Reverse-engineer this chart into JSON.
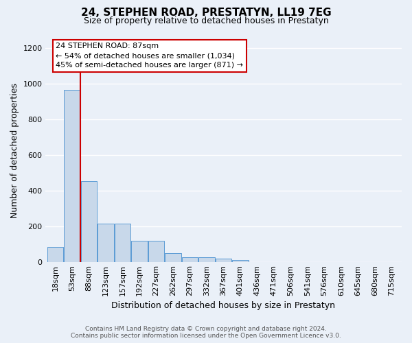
{
  "title": "24, STEPHEN ROAD, PRESTATYN, LL19 7EG",
  "subtitle": "Size of property relative to detached houses in Prestatyn",
  "xlabel": "Distribution of detached houses by size in Prestatyn",
  "ylabel": "Number of detached properties",
  "footer_line1": "Contains HM Land Registry data © Crown copyright and database right 2024.",
  "footer_line2": "Contains public sector information licensed under the Open Government Licence v3.0.",
  "annotation_line1": "24 STEPHEN ROAD: 87sqm",
  "annotation_line2": "← 54% of detached houses are smaller (1,034)",
  "annotation_line3": "45% of semi-detached houses are larger (871) →",
  "bar_labels": [
    "18sqm",
    "53sqm",
    "88sqm",
    "123sqm",
    "157sqm",
    "192sqm",
    "227sqm",
    "262sqm",
    "297sqm",
    "332sqm",
    "367sqm",
    "401sqm",
    "436sqm",
    "471sqm",
    "506sqm",
    "541sqm",
    "576sqm",
    "610sqm",
    "645sqm",
    "680sqm",
    "715sqm"
  ],
  "bar_heights": [
    85,
    965,
    455,
    215,
    215,
    120,
    120,
    50,
    25,
    25,
    20,
    10,
    0,
    0,
    0,
    0,
    0,
    0,
    0,
    0,
    0
  ],
  "bar_color": "#c8d8ea",
  "bar_edge_color": "#5b9bd5",
  "red_line_x": 1.5,
  "red_line_color": "#cc0000",
  "ylim": [
    0,
    1250
  ],
  "yticks": [
    0,
    200,
    400,
    600,
    800,
    1000,
    1200
  ],
  "bg_color": "#eaf0f8",
  "grid_color": "#ffffff",
  "annotation_box_color": "#ffffff",
  "annotation_box_edge": "#cc0000",
  "title_fontsize": 11,
  "subtitle_fontsize": 9,
  "ylabel_fontsize": 9,
  "xlabel_fontsize": 9,
  "tick_fontsize": 8,
  "footer_fontsize": 6.5,
  "annotation_fontsize": 8
}
